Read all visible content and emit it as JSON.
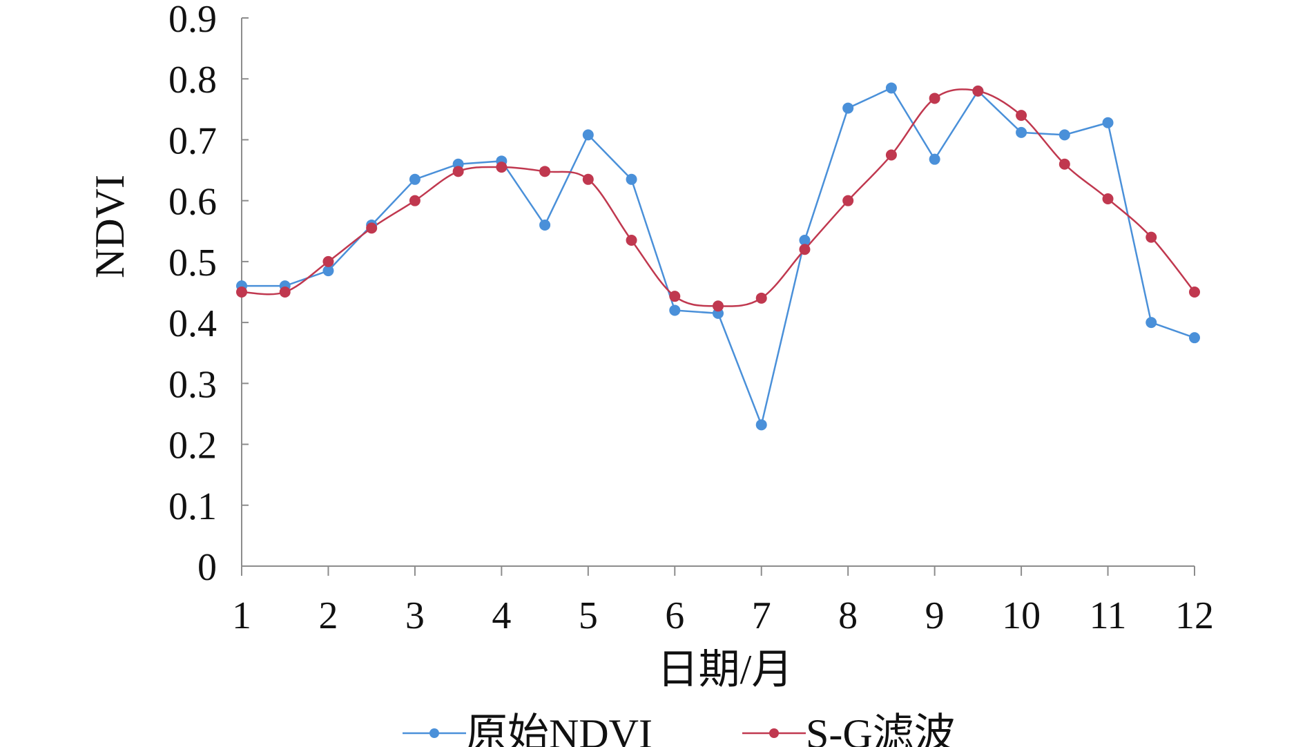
{
  "chart_data": {
    "type": "line",
    "xlabel": "日期/月",
    "ylabel": "NDVI",
    "x_ticks": [
      "1",
      "2",
      "3",
      "4",
      "5",
      "6",
      "7",
      "8",
      "9",
      "10",
      "11",
      "12"
    ],
    "y_ticks": [
      "0",
      "0.1",
      "0.2",
      "0.3",
      "0.4",
      "0.5",
      "0.6",
      "0.7",
      "0.8",
      "0.9"
    ],
    "xlim": [
      1,
      12
    ],
    "ylim": [
      0,
      0.9
    ],
    "grid": false,
    "legend_position": "bottom",
    "x": [
      1,
      1.5,
      2,
      2.5,
      3,
      3.5,
      4,
      4.5,
      5,
      5.5,
      6,
      6.5,
      7,
      7.5,
      8,
      8.5,
      9,
      9.5,
      10,
      10.5,
      11,
      11.5,
      12
    ],
    "series": [
      {
        "name": "原始NDVI",
        "color": "#4a90d9",
        "smooth": false,
        "values": [
          0.46,
          0.46,
          0.485,
          0.56,
          0.635,
          0.66,
          0.665,
          0.56,
          0.708,
          0.635,
          0.42,
          0.415,
          0.232,
          0.535,
          0.752,
          0.785,
          0.668,
          0.78,
          0.712,
          0.708,
          0.728,
          0.4,
          0.375
        ]
      },
      {
        "name": "S-G滤波",
        "color": "#c0384f",
        "smooth": true,
        "values": [
          0.45,
          0.45,
          0.5,
          0.555,
          0.6,
          0.648,
          0.655,
          0.648,
          0.635,
          0.535,
          0.443,
          0.427,
          0.44,
          0.52,
          0.6,
          0.675,
          0.768,
          0.78,
          0.74,
          0.66,
          0.603,
          0.54,
          0.45
        ]
      }
    ]
  }
}
